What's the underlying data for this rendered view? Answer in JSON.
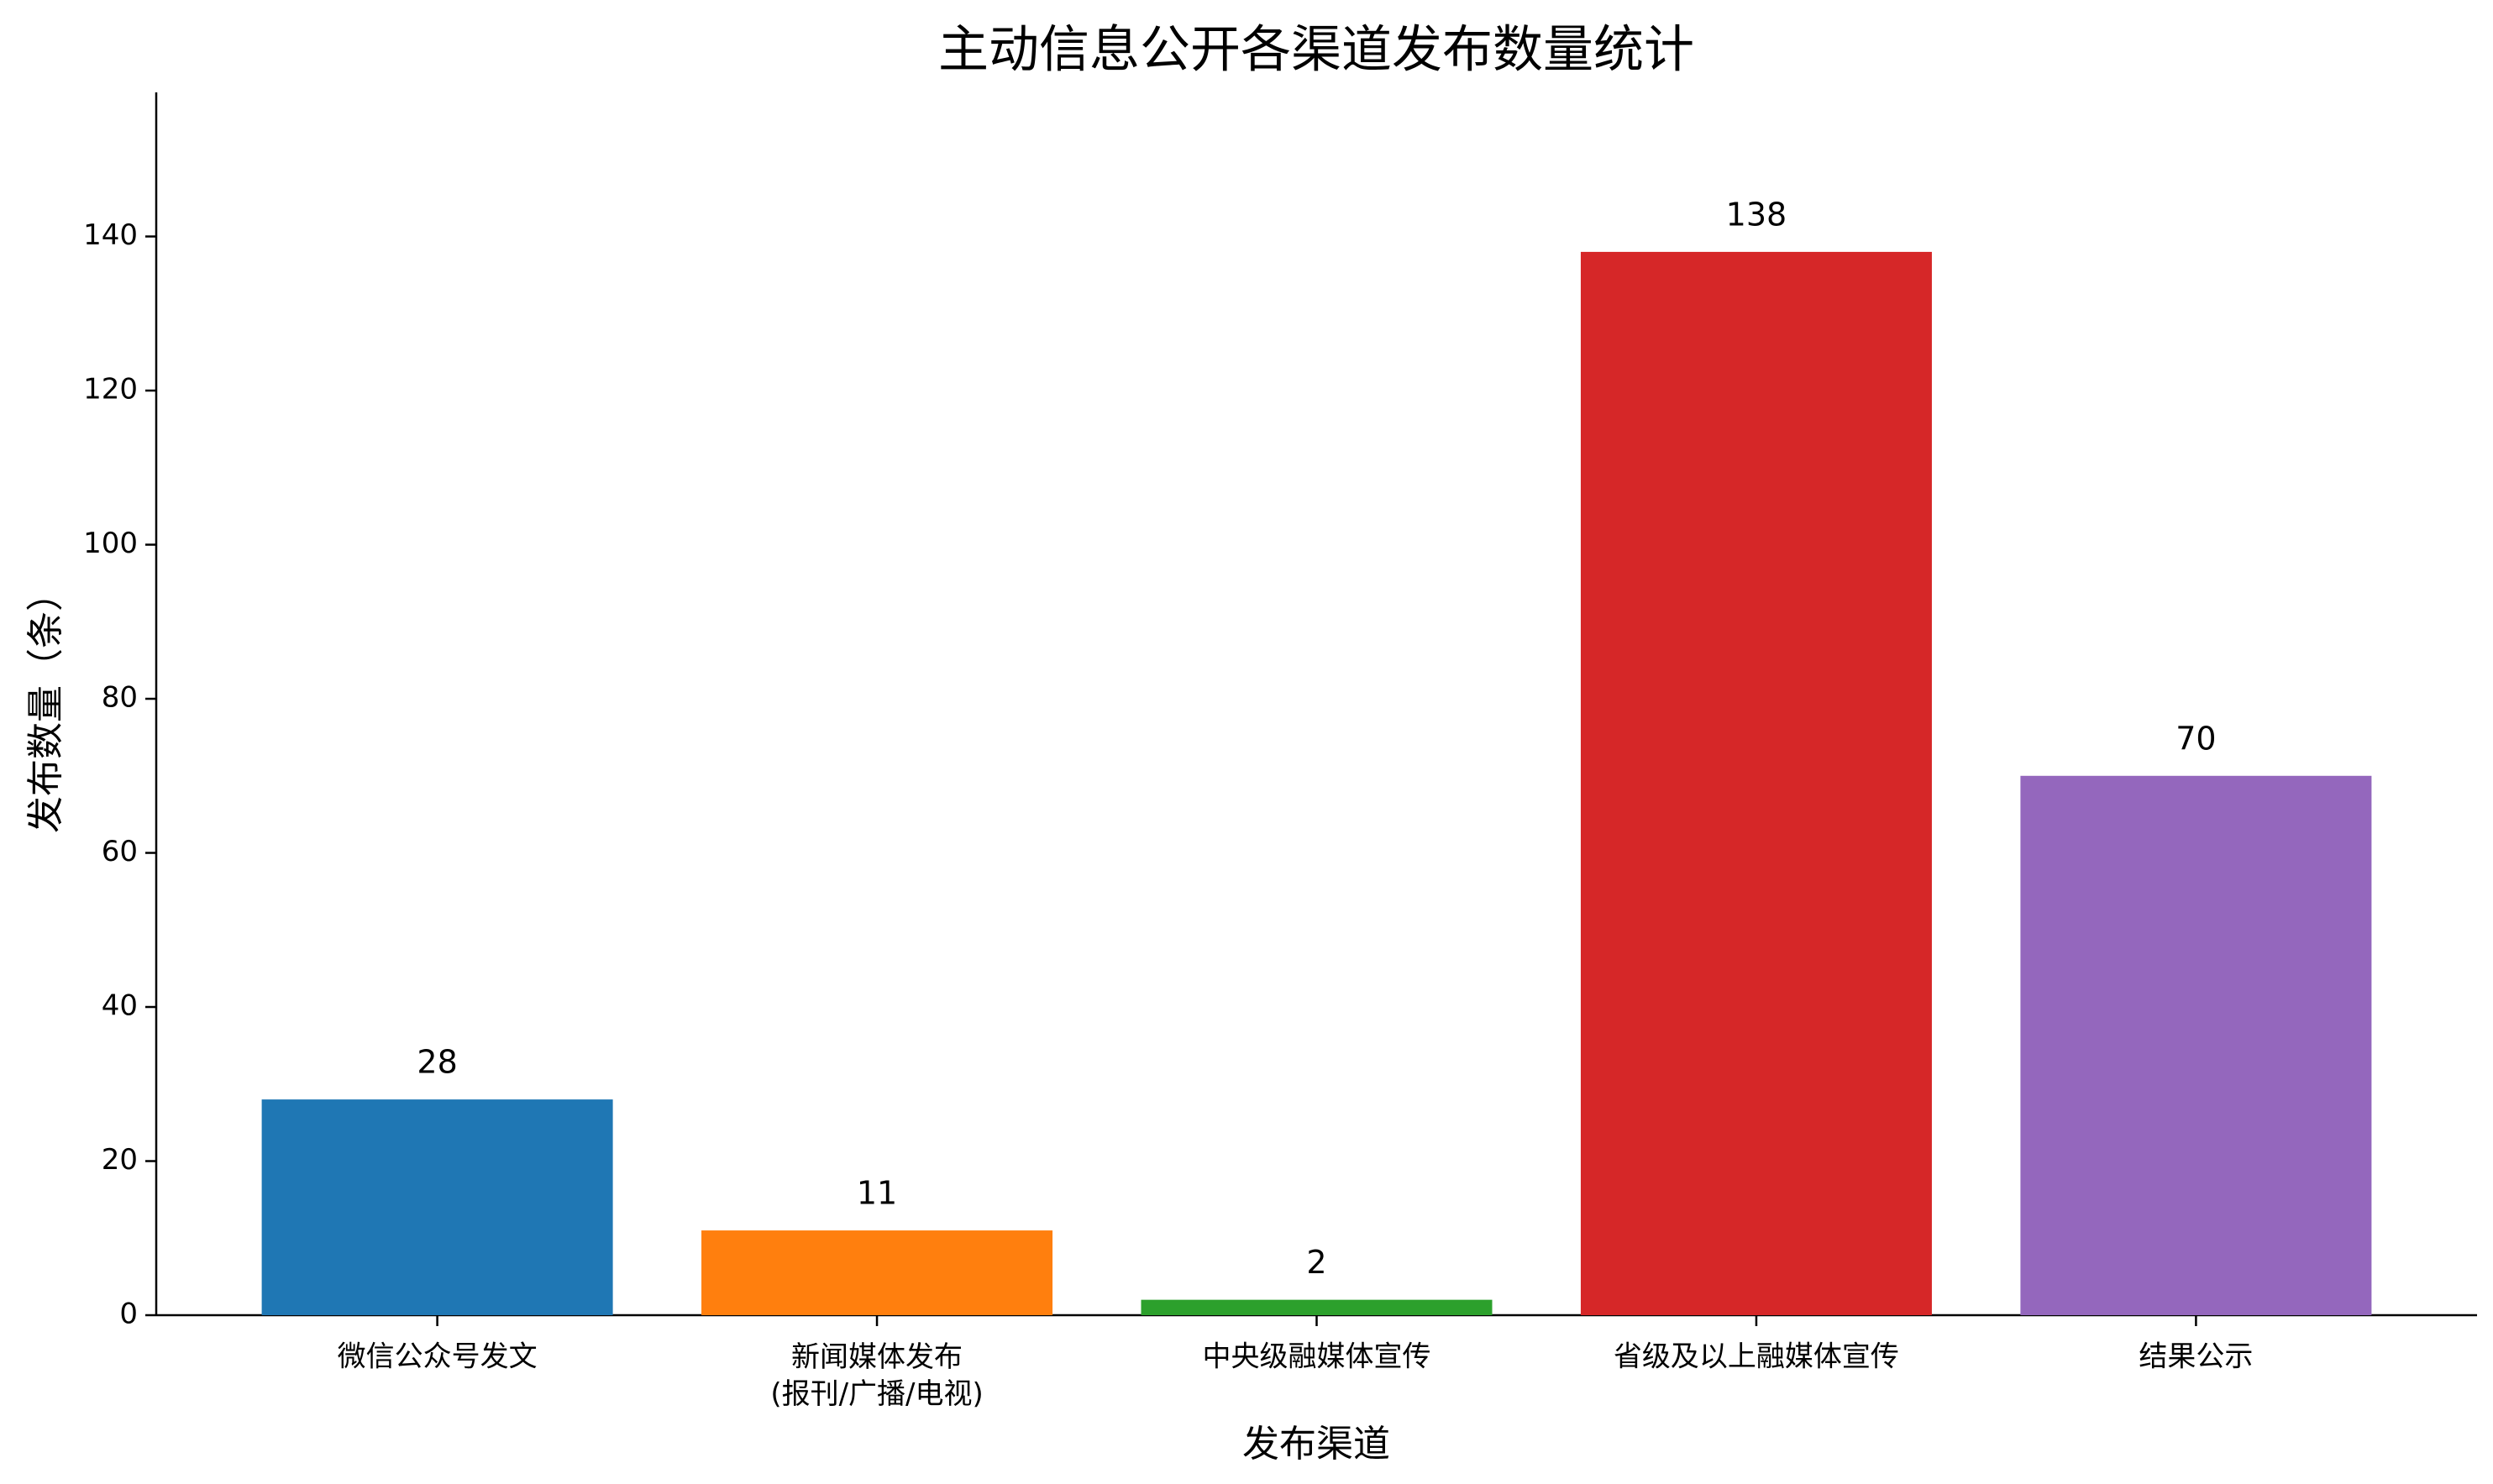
{
  "chart_data": {
    "type": "bar",
    "title": "主动信息公开各渠道发布数量统计",
    "xlabel": "发布渠道",
    "ylabel": "发布数量（条）",
    "categories": [
      "微信公众号发文",
      "新闻媒体发布\n(报刊/广播/电视)",
      "中央级融媒体宣传",
      "省级及以上融媒体宣传",
      "结果公示"
    ],
    "values": [
      28,
      11,
      2,
      138,
      70
    ],
    "colors": [
      "#1f77b4",
      "#ff7f0e",
      "#2ca02c",
      "#d62728",
      "#9467bd"
    ],
    "ylim": [
      0,
      158.7
    ],
    "yticks": [
      0,
      20,
      40,
      60,
      80,
      100,
      120,
      140
    ],
    "grid": false
  }
}
